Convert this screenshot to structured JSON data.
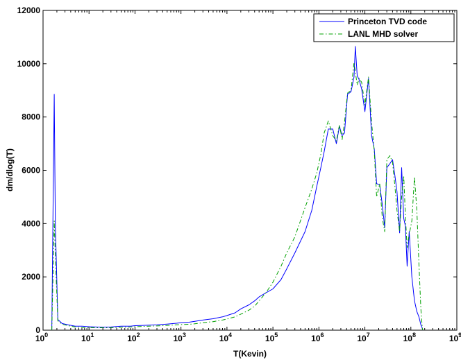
{
  "chart_data": {
    "type": "line",
    "xscale": "log",
    "xlim": [
      1,
      1000000000
    ],
    "ylim": [
      0,
      12000
    ],
    "xlabel": "T(Kevin)",
    "ylabel": "dm/dlog(T)",
    "x_ticks": [
      {
        "base": "10",
        "exp": "0"
      },
      {
        "base": "10",
        "exp": "1"
      },
      {
        "base": "10",
        "exp": "2"
      },
      {
        "base": "10",
        "exp": "3"
      },
      {
        "base": "10",
        "exp": "4"
      },
      {
        "base": "10",
        "exp": "5"
      },
      {
        "base": "10",
        "exp": "6"
      },
      {
        "base": "10",
        "exp": "7"
      },
      {
        "base": "10",
        "exp": "8"
      },
      {
        "base": "10",
        "exp": "9"
      }
    ],
    "y_ticks": [
      "0",
      "2000",
      "4000",
      "6000",
      "8000",
      "10000",
      "12000"
    ],
    "grid": false,
    "legend_position": "top-right",
    "series": [
      {
        "name": "Princeton TVD code",
        "color": "#0000ff",
        "style": "solid",
        "x": [
          1.55,
          1.75,
          1.85,
          2.1,
          2.6,
          3.5,
          5,
          7,
          10,
          14,
          20,
          30,
          50,
          80,
          100,
          150,
          200,
          300,
          500,
          800,
          1000,
          1500,
          2000,
          3000,
          5000,
          8000,
          10000,
          15000,
          20000,
          30000,
          40000,
          50000,
          70000,
          100000,
          150000,
          200000,
          300000,
          500000,
          700000,
          900000,
          1100000,
          1300000,
          1600000,
          2000000,
          2400000,
          2800000,
          3200000,
          3600000,
          4200000,
          5000000,
          5800000,
          6200000,
          6800000,
          7500000,
          8500000,
          10000000,
          12000000,
          14000000,
          16000000,
          18000000,
          21000000,
          24000000,
          27000000,
          30000000,
          35000000,
          40000000,
          45000000,
          50000000,
          57000000,
          63000000,
          70000000,
          76000000,
          83000000,
          92000000,
          105000000,
          120000000,
          135000000,
          150000000,
          165000000,
          175000000,
          180000000
        ],
        "y": [
          0,
          8850,
          4000,
          400,
          250,
          200,
          150,
          150,
          130,
          120,
          110,
          120,
          150,
          150,
          170,
          180,
          190,
          200,
          230,
          260,
          280,
          300,
          330,
          380,
          430,
          500,
          550,
          650,
          800,
          950,
          1100,
          1250,
          1400,
          1550,
          1900,
          2300,
          2900,
          3700,
          4500,
          5400,
          6100,
          6700,
          7550,
          7550,
          7000,
          7650,
          7300,
          7400,
          8850,
          8950,
          9500,
          10650,
          9550,
          9400,
          9050,
          8200,
          9450,
          7300,
          6800,
          5500,
          5450,
          4700,
          3850,
          6100,
          6250,
          6400,
          5800,
          5200,
          3650,
          6100,
          4200,
          3900,
          2400,
          3700,
          2000,
          1100,
          700,
          500,
          200,
          100,
          0
        ]
      },
      {
        "name": "LANL MHD solver",
        "color": "#00a000",
        "style": "dashdot",
        "x": [
          1.55,
          1.75,
          1.85,
          2.1,
          2.6,
          3.5,
          5,
          7,
          10,
          14,
          20,
          30,
          50,
          80,
          100,
          150,
          200,
          300,
          500,
          800,
          1000,
          1500,
          2000,
          3000,
          5000,
          8000,
          10000,
          15000,
          20000,
          30000,
          40000,
          50000,
          70000,
          100000,
          150000,
          200000,
          300000,
          500000,
          700000,
          900000,
          1100000,
          1300000,
          1600000,
          2000000,
          2400000,
          2800000,
          3200000,
          3600000,
          4200000,
          5000000,
          5800000,
          6200000,
          6800000,
          7500000,
          8500000,
          10000000,
          12000000,
          14000000,
          16000000,
          18000000,
          21000000,
          24000000,
          27000000,
          30000000,
          35000000,
          40000000,
          45000000,
          50000000,
          57000000,
          63000000,
          70000000,
          76000000,
          83000000,
          92000000,
          105000000,
          120000000,
          135000000,
          150000000,
          165000000,
          175000000,
          180000000
        ],
        "y": [
          0,
          4100,
          2800,
          350,
          220,
          170,
          120,
          100,
          90,
          90,
          90,
          90,
          110,
          120,
          130,
          140,
          150,
          160,
          180,
          200,
          210,
          220,
          240,
          280,
          320,
          380,
          420,
          500,
          600,
          750,
          900,
          1100,
          1400,
          1800,
          2400,
          2900,
          3500,
          4600,
          5300,
          5900,
          6600,
          7400,
          7850,
          7300,
          7100,
          7700,
          7150,
          7800,
          8900,
          9000,
          10050,
          9700,
          9200,
          9450,
          9300,
          8450,
          9500,
          7800,
          6700,
          5000,
          5500,
          4200,
          3700,
          6400,
          6550,
          6300,
          5400,
          4500,
          3700,
          5000,
          5800,
          4300,
          3100,
          3600,
          4100,
          5750,
          4500,
          2500,
          800,
          200,
          0
        ]
      }
    ]
  }
}
